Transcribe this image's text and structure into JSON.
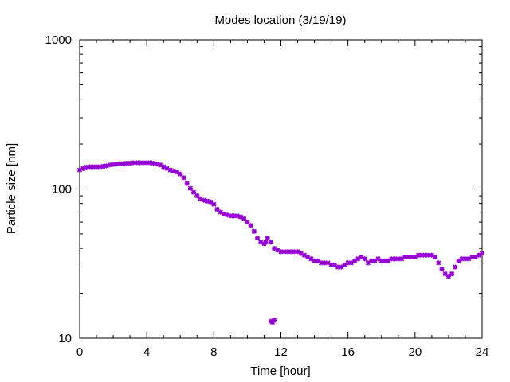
{
  "chart_data": {
    "type": "scatter",
    "title": "Modes location (3/19/19)",
    "xlabel": "Time [hour]",
    "ylabel": "Particle size [nm]",
    "xlim": [
      0,
      24
    ],
    "ylim": [
      10,
      1000
    ],
    "yscale": "log",
    "grid": false,
    "x_ticks": [
      0,
      4,
      8,
      12,
      16,
      20,
      24
    ],
    "x_tick_labels": [
      "0",
      "4",
      "8",
      "12",
      "16",
      "20",
      "24"
    ],
    "y_ticks": [
      10,
      100,
      1000
    ],
    "y_tick_labels": [
      "10",
      "100",
      "1000"
    ],
    "x_minor_step": 1,
    "y_minor": [
      20,
      30,
      40,
      50,
      60,
      70,
      80,
      90,
      200,
      300,
      400,
      500,
      600,
      700,
      800,
      900
    ],
    "marker_color": "#9400d3",
    "series": [
      {
        "points": [
          [
            0.0,
            134
          ],
          [
            0.2,
            137
          ],
          [
            0.4,
            140
          ],
          [
            0.6,
            141
          ],
          [
            0.8,
            141
          ],
          [
            1.0,
            141
          ],
          [
            1.2,
            141
          ],
          [
            1.4,
            142
          ],
          [
            1.6,
            143
          ],
          [
            1.8,
            145
          ],
          [
            2.0,
            146
          ],
          [
            2.2,
            147
          ],
          [
            2.4,
            148
          ],
          [
            2.6,
            148
          ],
          [
            2.8,
            149
          ],
          [
            3.0,
            149
          ],
          [
            3.2,
            150
          ],
          [
            3.4,
            150
          ],
          [
            3.6,
            150
          ],
          [
            3.8,
            150
          ],
          [
            4.0,
            150
          ],
          [
            4.2,
            150
          ],
          [
            4.4,
            149
          ],
          [
            4.6,
            147
          ],
          [
            4.8,
            145
          ],
          [
            5.0,
            141
          ],
          [
            5.2,
            137
          ],
          [
            5.4,
            134
          ],
          [
            5.6,
            132
          ],
          [
            5.8,
            130
          ],
          [
            6.0,
            126
          ],
          [
            6.2,
            119
          ],
          [
            6.4,
            109
          ],
          [
            6.6,
            101
          ],
          [
            6.8,
            95
          ],
          [
            7.0,
            90
          ],
          [
            7.2,
            86
          ],
          [
            7.4,
            84
          ],
          [
            7.6,
            83
          ],
          [
            7.8,
            82
          ],
          [
            8.0,
            79
          ],
          [
            8.2,
            73
          ],
          [
            8.4,
            70
          ],
          [
            8.6,
            68
          ],
          [
            8.8,
            67
          ],
          [
            9.0,
            66
          ],
          [
            9.2,
            66
          ],
          [
            9.4,
            66
          ],
          [
            9.6,
            65
          ],
          [
            9.8,
            63
          ],
          [
            10.0,
            60
          ],
          [
            10.2,
            57
          ],
          [
            10.4,
            52
          ],
          [
            10.6,
            47
          ],
          [
            10.8,
            44
          ],
          [
            11.0,
            43
          ],
          [
            11.1,
            44
          ],
          [
            11.2,
            47
          ],
          [
            11.4,
            44
          ],
          [
            11.6,
            40
          ],
          [
            11.8,
            39
          ],
          [
            12.0,
            38
          ],
          [
            12.2,
            38
          ],
          [
            12.4,
            38
          ],
          [
            12.6,
            38
          ],
          [
            12.8,
            38
          ],
          [
            13.0,
            38
          ],
          [
            13.2,
            37
          ],
          [
            13.4,
            36
          ],
          [
            13.6,
            35
          ],
          [
            13.8,
            34
          ],
          [
            14.0,
            33
          ],
          [
            14.2,
            33
          ],
          [
            14.4,
            32
          ],
          [
            14.6,
            32
          ],
          [
            14.8,
            32
          ],
          [
            15.0,
            31
          ],
          [
            15.2,
            31
          ],
          [
            15.4,
            30
          ],
          [
            15.6,
            30
          ],
          [
            15.8,
            31
          ],
          [
            16.0,
            32
          ],
          [
            16.2,
            32
          ],
          [
            16.4,
            33
          ],
          [
            16.6,
            34
          ],
          [
            16.8,
            35
          ],
          [
            17.0,
            34
          ],
          [
            17.2,
            32
          ],
          [
            17.4,
            33
          ],
          [
            17.6,
            33
          ],
          [
            17.8,
            34
          ],
          [
            18.0,
            33
          ],
          [
            18.2,
            33
          ],
          [
            18.4,
            33
          ],
          [
            18.6,
            34
          ],
          [
            18.8,
            34
          ],
          [
            19.0,
            34
          ],
          [
            19.2,
            34
          ],
          [
            19.4,
            35
          ],
          [
            19.6,
            35
          ],
          [
            19.8,
            35
          ],
          [
            20.0,
            35
          ],
          [
            20.2,
            36
          ],
          [
            20.4,
            36
          ],
          [
            20.6,
            36
          ],
          [
            20.8,
            36
          ],
          [
            21.0,
            36
          ],
          [
            21.2,
            35
          ],
          [
            21.4,
            32
          ],
          [
            21.6,
            29
          ],
          [
            21.8,
            27
          ],
          [
            22.0,
            26
          ],
          [
            22.2,
            27
          ],
          [
            22.4,
            30
          ],
          [
            22.6,
            33
          ],
          [
            22.8,
            34
          ],
          [
            23.0,
            34
          ],
          [
            23.2,
            34
          ],
          [
            23.4,
            35
          ],
          [
            23.6,
            35
          ],
          [
            23.8,
            36
          ],
          [
            24.0,
            37
          ],
          [
            11.4,
            13
          ],
          [
            11.5,
            12.8
          ],
          [
            11.6,
            13.2
          ]
        ]
      }
    ]
  }
}
